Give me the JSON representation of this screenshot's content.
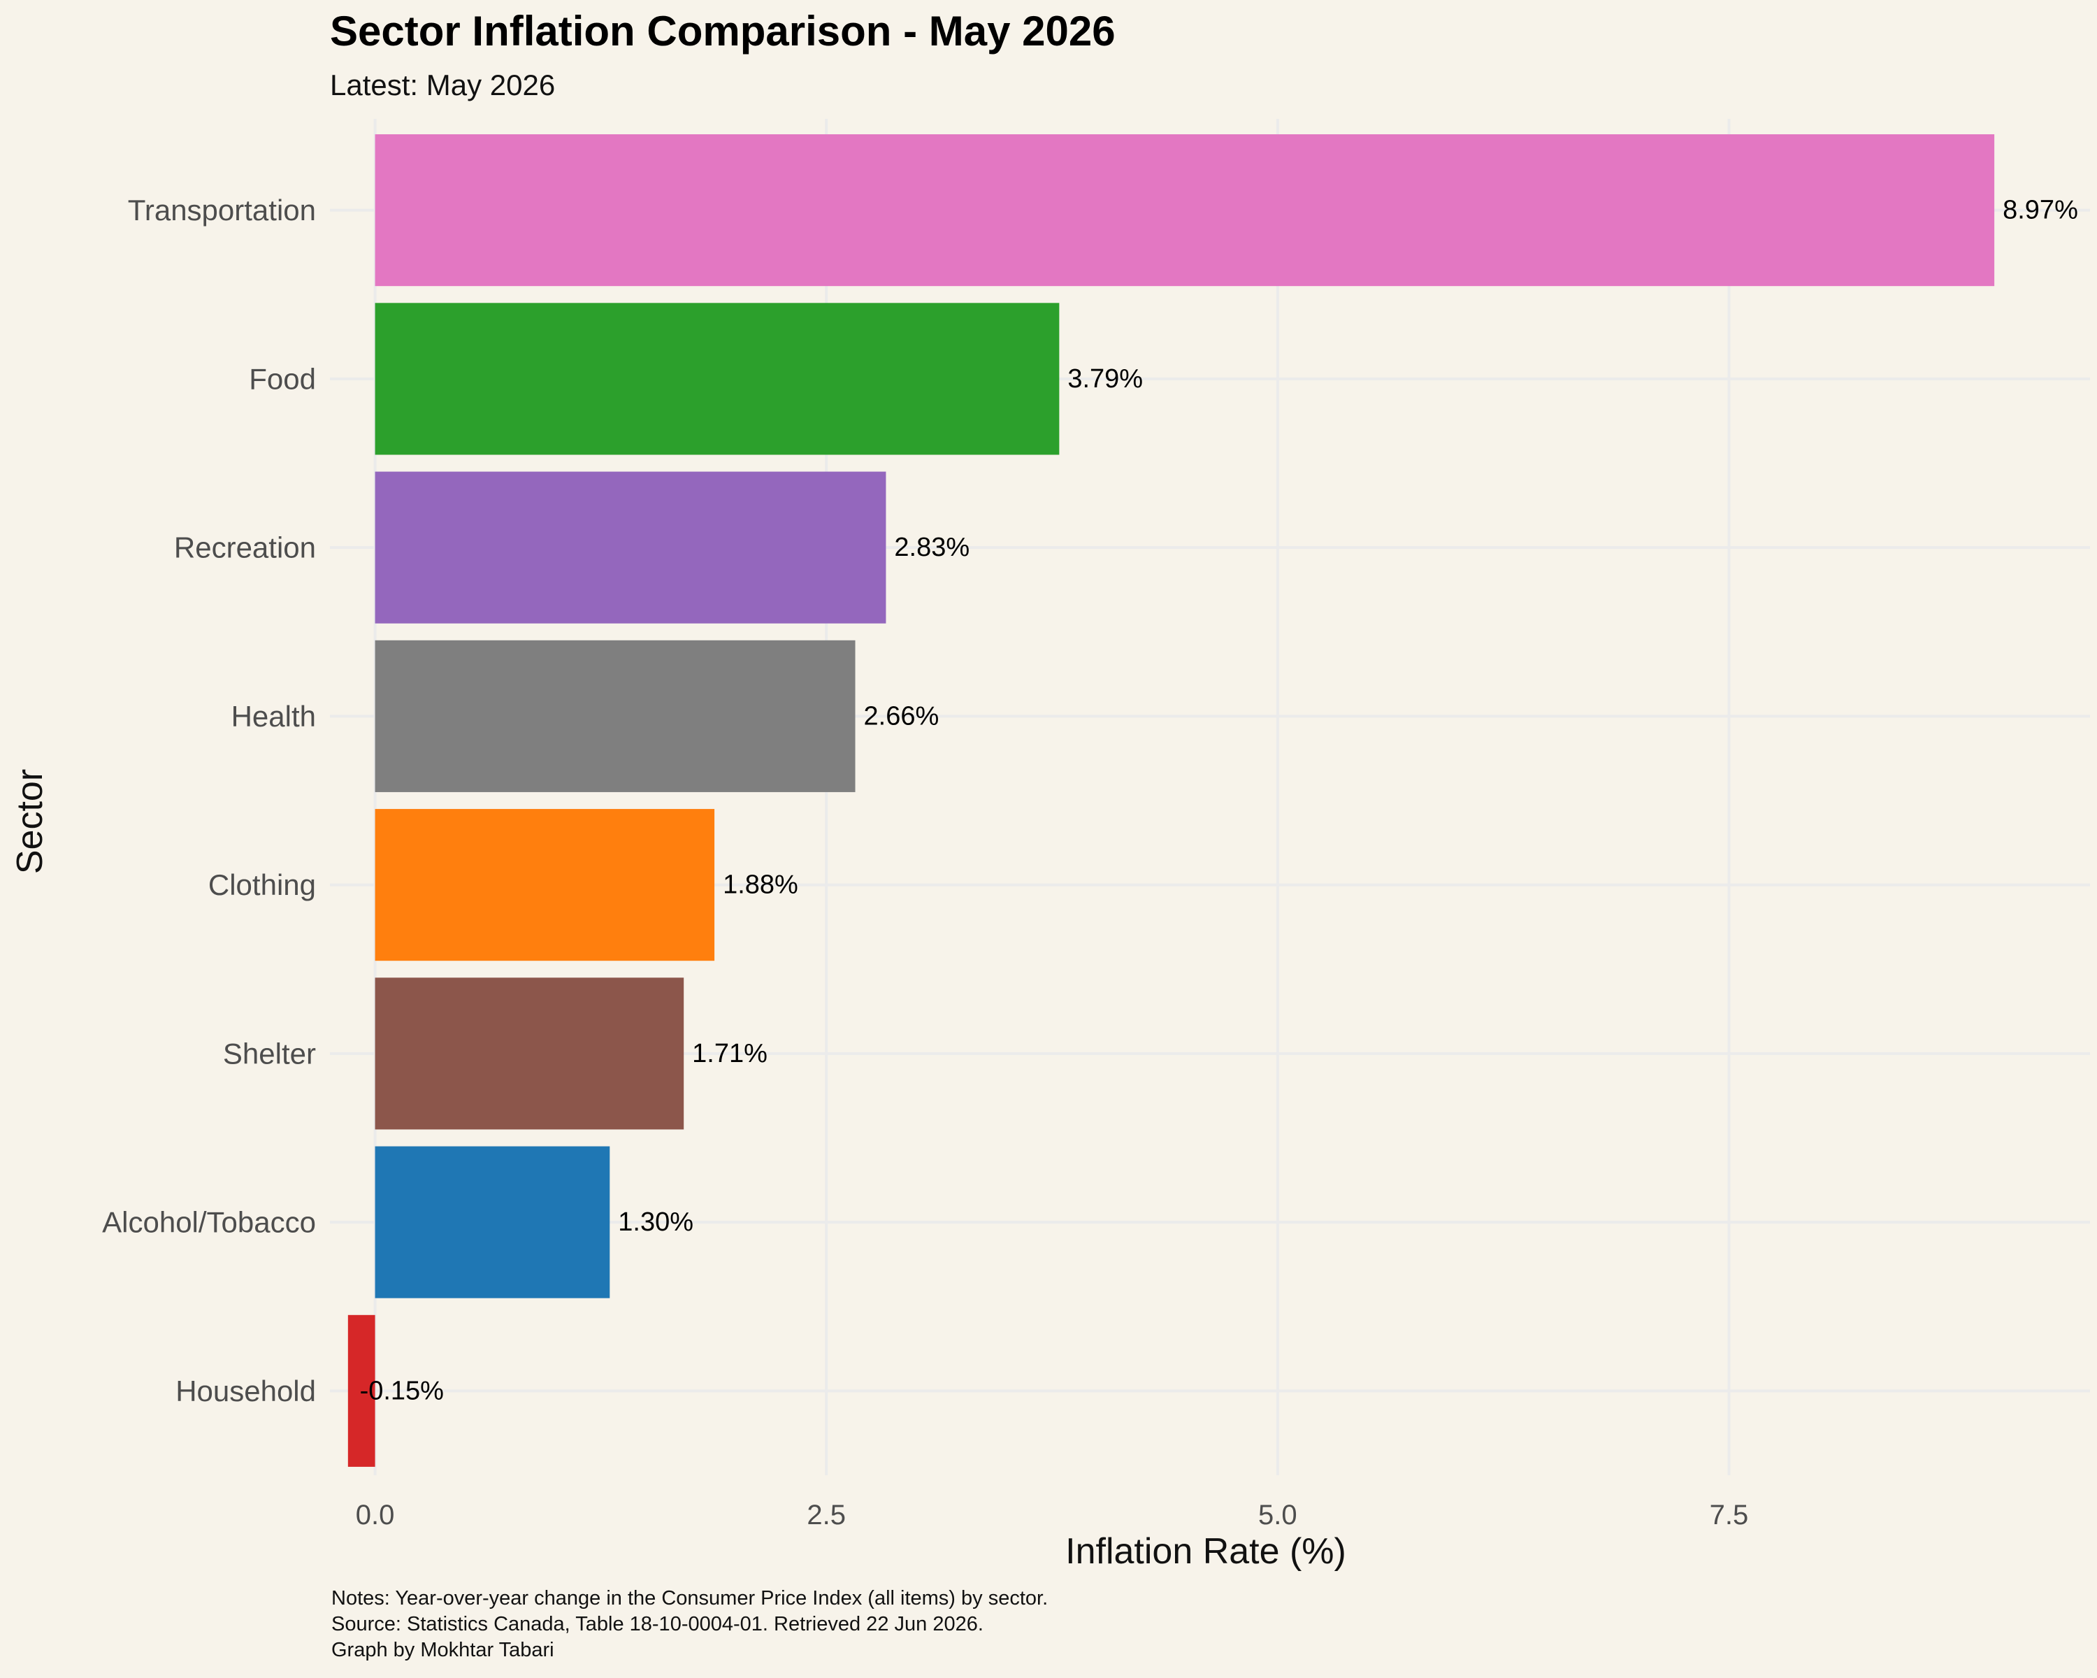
{
  "title": "Sector Inflation Comparison - May 2026",
  "subtitle": "Latest: May 2026",
  "caption_lines": [
    "Notes: Year-over-year change in the Consumer Price Index (all items) by sector.",
    "Source: Statistics Canada, Table 18-10-0004-01. Retrieved 22 Jun 2026.",
    "Graph by Mokhtar Tabari"
  ],
  "chart_data": {
    "type": "bar",
    "orientation": "horizontal",
    "title": "Sector Inflation Comparison - May 2026",
    "subtitle": "Latest: May 2026",
    "xlabel": "Inflation Rate (%)",
    "ylabel": "Sector",
    "xlim": [
      -0.25,
      9.5
    ],
    "x_ticks": [
      0,
      2.5,
      5,
      7.5
    ],
    "x_tick_labels": [
      "0.0",
      "2.5",
      "5.0",
      "7.5"
    ],
    "grid": true,
    "legend": "none",
    "categories": [
      "Transportation",
      "Food",
      "Recreation",
      "Health",
      "Clothing",
      "Shelter",
      "Alcohol/Tobacco",
      "Household"
    ],
    "values": [
      8.97,
      3.79,
      2.83,
      2.66,
      1.88,
      1.71,
      1.3,
      -0.15
    ],
    "value_labels": [
      "8.97%",
      "3.79%",
      "2.83%",
      "2.66%",
      "1.88%",
      "1.71%",
      "1.30%",
      "-0.15%"
    ],
    "colors": [
      "#e377c2",
      "#2ca02c",
      "#9467bd",
      "#7f7f7f",
      "#ff7f0e",
      "#8c564b",
      "#1f77b4",
      "#d62728"
    ]
  }
}
